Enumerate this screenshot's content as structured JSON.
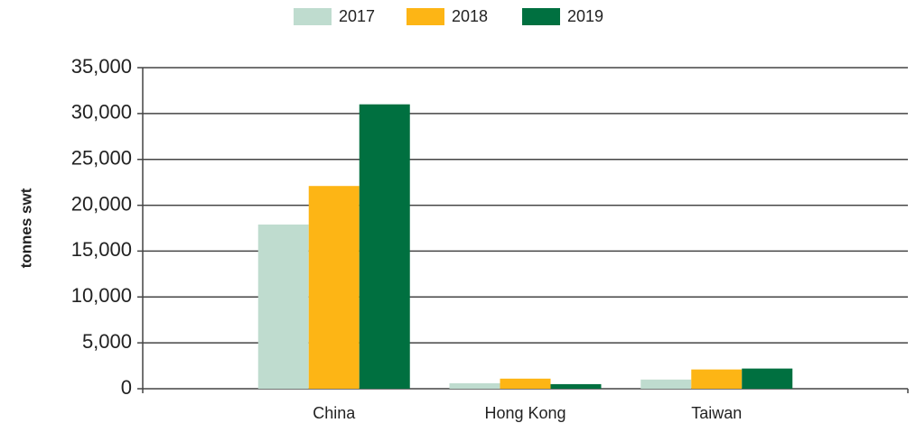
{
  "chart_data": {
    "type": "bar",
    "y_label": "tonnes swt",
    "categories": [
      "China",
      "Hong Kong",
      "Taiwan"
    ],
    "series": [
      {
        "name": "2017",
        "color": "#bfdccf",
        "values": [
          17900,
          600,
          1000
        ]
      },
      {
        "name": "2018",
        "color": "#fdb515",
        "values": [
          22100,
          1100,
          2100
        ]
      },
      {
        "name": "2019",
        "color": "#007040",
        "values": [
          31000,
          500,
          2200
        ]
      }
    ],
    "ylim": [
      0,
      35000
    ],
    "yticks": [
      0,
      {
        "value": 5000,
        "label": "5,000"
      },
      {
        "value": 10000,
        "label": "10,000"
      },
      {
        "value": 15000,
        "label": "15,000"
      },
      {
        "value": 20000,
        "label": "20,000"
      },
      {
        "value": 25000,
        "label": "25,000"
      },
      {
        "value": 30000,
        "label": "30,000"
      },
      {
        "value": 35000,
        "label": "35,000"
      }
    ],
    "grid": true,
    "legend": "top"
  }
}
